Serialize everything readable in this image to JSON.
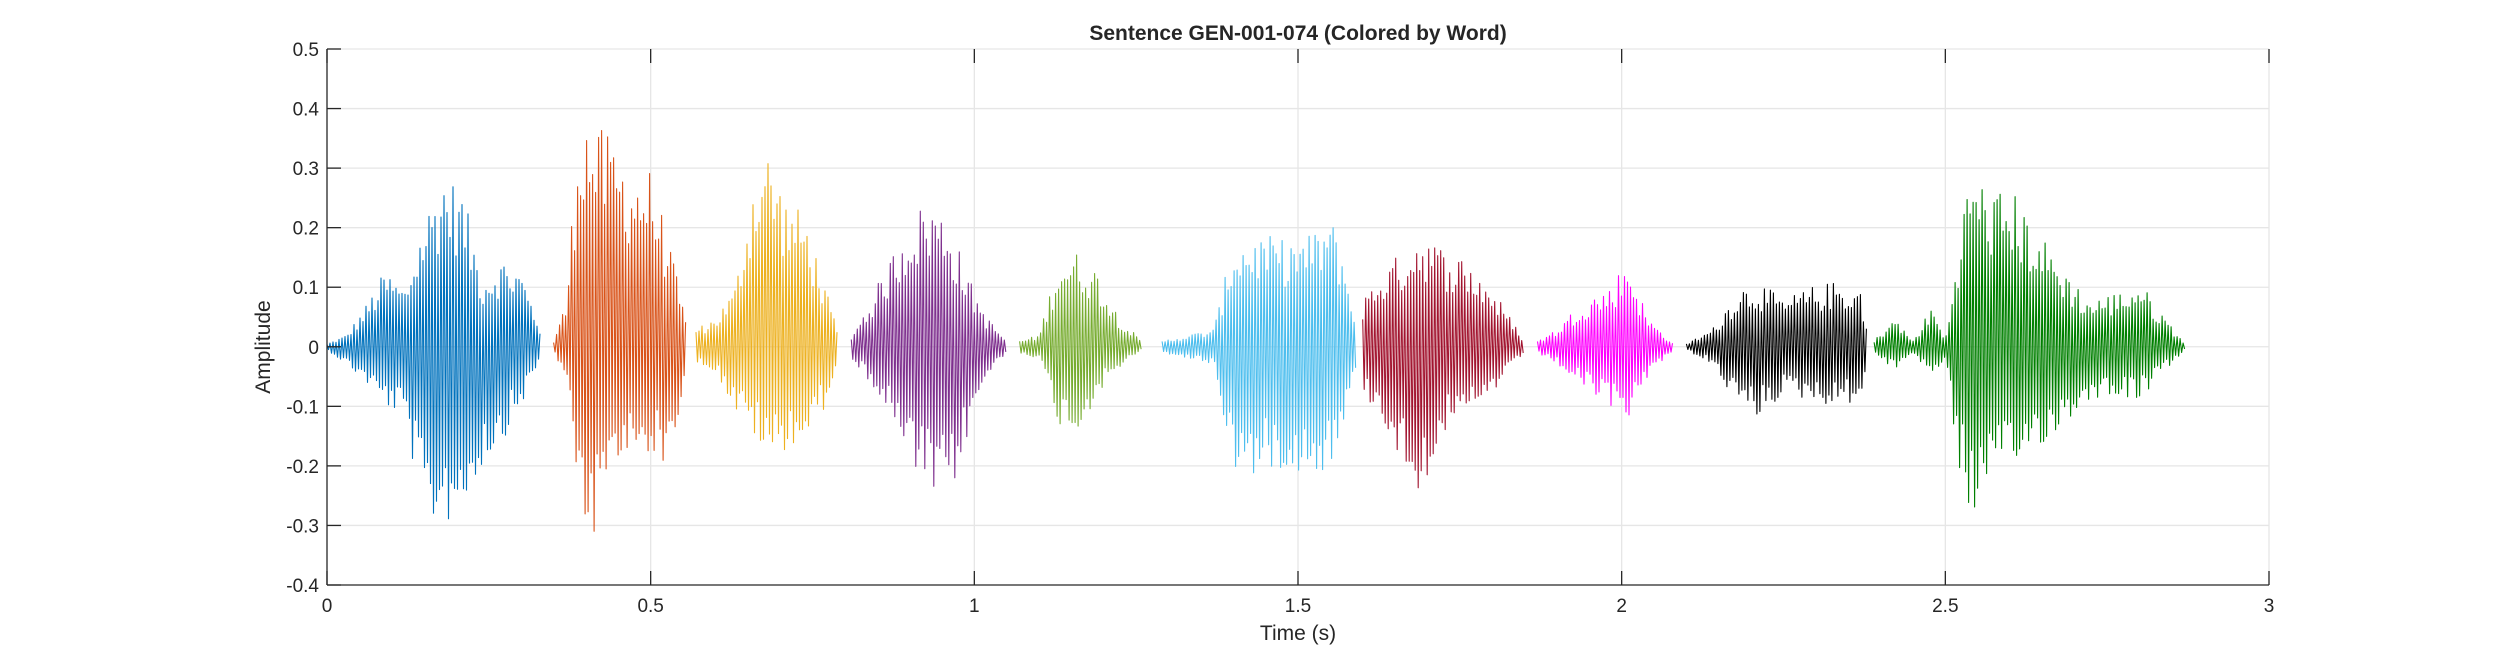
{
  "chart_data": {
    "type": "line",
    "title": "Sentence GEN-001-074 (Colored by Word)",
    "xlabel": "Time (s)",
    "ylabel": "Amplitude",
    "xlim": [
      0,
      3
    ],
    "ylim": [
      -0.4,
      0.5
    ],
    "grid": true,
    "x_ticks": [
      0,
      0.5,
      1,
      1.5,
      2,
      2.5,
      3
    ],
    "x_tick_labels": [
      "0",
      "0.5",
      "1",
      "1.5",
      "2",
      "2.5",
      "3"
    ],
    "y_ticks": [
      -0.4,
      -0.3,
      -0.2,
      -0.1,
      0,
      0.1,
      0.2,
      0.3,
      0.4,
      0.5
    ],
    "y_tick_labels": [
      "-0.4",
      "-0.3",
      "-0.2",
      "-0.1",
      "0",
      "0.1",
      "0.2",
      "0.3",
      "0.4",
      "0.5"
    ],
    "series": [
      {
        "color": "#0072BD",
        "t_start": 0.0,
        "t_end": 0.33,
        "envelope": [
          [
            0.0,
            0.005,
            0.005
          ],
          [
            0.03,
            0.02,
            0.03
          ],
          [
            0.06,
            0.07,
            0.06
          ],
          [
            0.09,
            0.13,
            0.1
          ],
          [
            0.12,
            0.1,
            0.12
          ],
          [
            0.15,
            0.22,
            0.3
          ],
          [
            0.18,
            0.3,
            0.3
          ],
          [
            0.21,
            0.26,
            0.28
          ],
          [
            0.24,
            0.12,
            0.2
          ],
          [
            0.27,
            0.15,
            0.16
          ],
          [
            0.3,
            0.13,
            0.1
          ],
          [
            0.33,
            0.03,
            0.02
          ]
        ]
      },
      {
        "color": "#D95319",
        "t_start": 0.35,
        "t_end": 0.555,
        "envelope": [
          [
            0.35,
            0.01,
            0.01
          ],
          [
            0.37,
            0.08,
            0.05
          ],
          [
            0.39,
            0.42,
            0.3
          ],
          [
            0.41,
            0.38,
            0.33
          ],
          [
            0.44,
            0.35,
            0.22
          ],
          [
            0.47,
            0.3,
            0.18
          ],
          [
            0.5,
            0.3,
            0.18
          ],
          [
            0.53,
            0.17,
            0.2
          ],
          [
            0.555,
            0.04,
            0.05
          ]
        ]
      },
      {
        "color": "#EDB120",
        "t_start": 0.57,
        "t_end": 0.79,
        "envelope": [
          [
            0.57,
            0.03,
            0.03
          ],
          [
            0.6,
            0.05,
            0.04
          ],
          [
            0.63,
            0.1,
            0.11
          ],
          [
            0.66,
            0.3,
            0.15
          ],
          [
            0.68,
            0.34,
            0.2
          ],
          [
            0.71,
            0.25,
            0.17
          ],
          [
            0.74,
            0.22,
            0.16
          ],
          [
            0.77,
            0.1,
            0.1
          ],
          [
            0.79,
            0.02,
            0.02
          ]
        ]
      },
      {
        "color": "#7E2F8E",
        "t_start": 0.81,
        "t_end": 1.05,
        "envelope": [
          [
            0.81,
            0.02,
            0.02
          ],
          [
            0.84,
            0.08,
            0.06
          ],
          [
            0.87,
            0.15,
            0.12
          ],
          [
            0.9,
            0.22,
            0.2
          ],
          [
            0.93,
            0.25,
            0.25
          ],
          [
            0.96,
            0.22,
            0.27
          ],
          [
            0.99,
            0.12,
            0.15
          ],
          [
            1.02,
            0.05,
            0.05
          ],
          [
            1.05,
            0.01,
            0.01
          ]
        ]
      },
      {
        "color": "#77AC30",
        "t_start": 1.07,
        "t_end": 1.26,
        "envelope": [
          [
            1.07,
            0.01,
            0.01
          ],
          [
            1.1,
            0.02,
            0.02
          ],
          [
            1.13,
            0.15,
            0.13
          ],
          [
            1.16,
            0.16,
            0.15
          ],
          [
            1.19,
            0.13,
            0.08
          ],
          [
            1.22,
            0.06,
            0.04
          ],
          [
            1.26,
            0.005,
            0.005
          ]
        ]
      },
      {
        "color": "#4DBEEE",
        "t_start": 1.29,
        "t_end": 1.59,
        "envelope": [
          [
            1.29,
            0.01,
            0.01
          ],
          [
            1.33,
            0.02,
            0.02
          ],
          [
            1.37,
            0.03,
            0.03
          ],
          [
            1.4,
            0.18,
            0.21
          ],
          [
            1.44,
            0.19,
            0.22
          ],
          [
            1.48,
            0.18,
            0.2
          ],
          [
            1.52,
            0.19,
            0.22
          ],
          [
            1.55,
            0.22,
            0.2
          ],
          [
            1.57,
            0.16,
            0.15
          ],
          [
            1.59,
            0.03,
            0.03
          ]
        ]
      },
      {
        "color": "#A2142F",
        "t_start": 1.6,
        "t_end": 1.85,
        "envelope": [
          [
            1.6,
            0.08,
            0.08
          ],
          [
            1.63,
            0.13,
            0.12
          ],
          [
            1.66,
            0.16,
            0.2
          ],
          [
            1.69,
            0.2,
            0.25
          ],
          [
            1.72,
            0.17,
            0.15
          ],
          [
            1.76,
            0.15,
            0.13
          ],
          [
            1.8,
            0.1,
            0.08
          ],
          [
            1.85,
            0.01,
            0.01
          ]
        ]
      },
      {
        "color": "#FF00FF",
        "t_start": 1.87,
        "t_end": 2.08,
        "envelope": [
          [
            1.87,
            0.01,
            0.01
          ],
          [
            1.9,
            0.03,
            0.03
          ],
          [
            1.94,
            0.08,
            0.07
          ],
          [
            1.98,
            0.1,
            0.1
          ],
          [
            2.01,
            0.15,
            0.12
          ],
          [
            2.04,
            0.05,
            0.05
          ],
          [
            2.08,
            0.005,
            0.005
          ]
        ]
      },
      {
        "color": "#000000",
        "t_start": 2.1,
        "t_end": 2.38,
        "envelope": [
          [
            2.1,
            0.005,
            0.005
          ],
          [
            2.14,
            0.03,
            0.03
          ],
          [
            2.18,
            0.1,
            0.1
          ],
          [
            2.21,
            0.11,
            0.12
          ],
          [
            2.25,
            0.08,
            0.08
          ],
          [
            2.29,
            0.1,
            0.09
          ],
          [
            2.33,
            0.11,
            0.1
          ],
          [
            2.37,
            0.1,
            0.09
          ],
          [
            2.38,
            0.02,
            0.02
          ]
        ]
      },
      {
        "color": "#008000",
        "t_start": 2.39,
        "t_end": 2.87,
        "envelope": [
          [
            2.39,
            0.01,
            0.01
          ],
          [
            2.42,
            0.05,
            0.04
          ],
          [
            2.45,
            0.01,
            0.01
          ],
          [
            2.48,
            0.07,
            0.05
          ],
          [
            2.5,
            0.01,
            0.02
          ],
          [
            2.52,
            0.18,
            0.2
          ],
          [
            2.54,
            0.31,
            0.29
          ],
          [
            2.57,
            0.26,
            0.24
          ],
          [
            2.6,
            0.27,
            0.22
          ],
          [
            2.64,
            0.2,
            0.17
          ],
          [
            2.68,
            0.14,
            0.14
          ],
          [
            2.72,
            0.08,
            0.09
          ],
          [
            2.76,
            0.09,
            0.08
          ],
          [
            2.8,
            0.11,
            0.09
          ],
          [
            2.84,
            0.05,
            0.04
          ],
          [
            2.87,
            0.005,
            0.005
          ]
        ]
      }
    ]
  }
}
